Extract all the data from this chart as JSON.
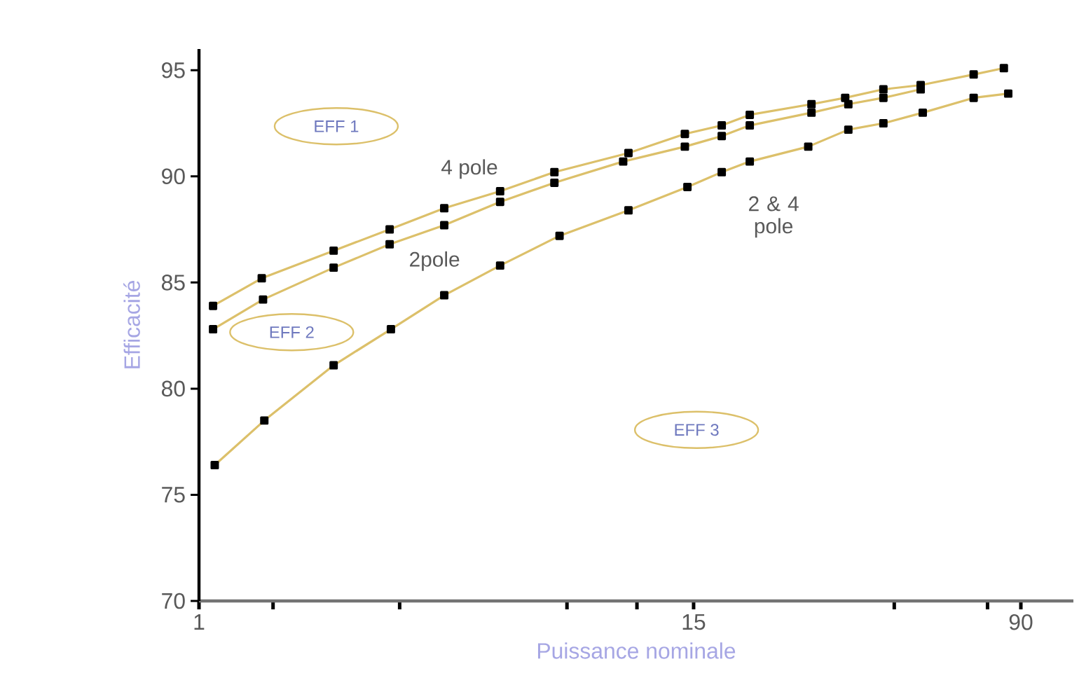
{
  "chart_data": {
    "type": "line",
    "xlabel": "Puissance nominale",
    "ylabel": "Efficacité",
    "log": "x",
    "xlim": [
      1,
      120
    ],
    "ylim": [
      70,
      96
    ],
    "xticks": [
      1,
      {
        "value": 1.5,
        "label": null
      },
      {
        "value": 3,
        "label": null
      },
      {
        "value": 7.5,
        "label": null
      },
      {
        "value": 11,
        "label": null
      },
      15,
      {
        "value": 45,
        "label": null
      },
      {
        "value": 75,
        "label": null
      },
      90
    ],
    "yticks": [
      70,
      75,
      80,
      85,
      90,
      95
    ],
    "marker": "square",
    "line_style": "solid",
    "legend": false,
    "series": [
      {
        "name": "4 pole",
        "color": "#dcc06a",
        "x": [
          1.08,
          1.41,
          2.09,
          2.84,
          3.83,
          5.2,
          7.0,
          10.5,
          14.3,
          17.5,
          20.4,
          28.6,
          34.4,
          42.4,
          52,
          69.5,
          82
        ],
        "values": [
          83.9,
          85.2,
          86.5,
          87.5,
          88.5,
          89.3,
          90.2,
          91.1,
          92.0,
          92.4,
          92.9,
          93.4,
          93.7,
          94.1,
          94.3,
          94.8,
          95.1
        ]
      },
      {
        "name": "2pole",
        "color": "#dcc06a",
        "x": [
          1.08,
          1.42,
          2.09,
          2.84,
          3.83,
          5.2,
          7.0,
          10.2,
          14.3,
          17.5,
          20.4,
          28.6,
          35,
          42.4,
          52
        ],
        "values": [
          82.8,
          84.2,
          85.7,
          86.8,
          87.7,
          88.8,
          89.7,
          90.7,
          91.4,
          91.9,
          92.4,
          93.0,
          93.4,
          93.7,
          94.1
        ]
      },
      {
        "name": "2 & 4 pole",
        "color": "#dcc06a",
        "x": [
          1.09,
          1.43,
          2.09,
          2.86,
          3.83,
          5.2,
          7.2,
          10.5,
          14.5,
          17.5,
          20.4,
          28.1,
          35,
          42.4,
          52.6,
          69.5,
          84
        ],
        "values": [
          76.4,
          78.5,
          81.1,
          82.8,
          84.4,
          85.8,
          87.2,
          88.4,
          89.5,
          90.2,
          90.7,
          91.4,
          92.2,
          92.5,
          93.0,
          93.7,
          93.9
        ]
      }
    ],
    "annotations": [
      "EFF 1",
      "EFF 2",
      "EFF 3"
    ]
  }
}
